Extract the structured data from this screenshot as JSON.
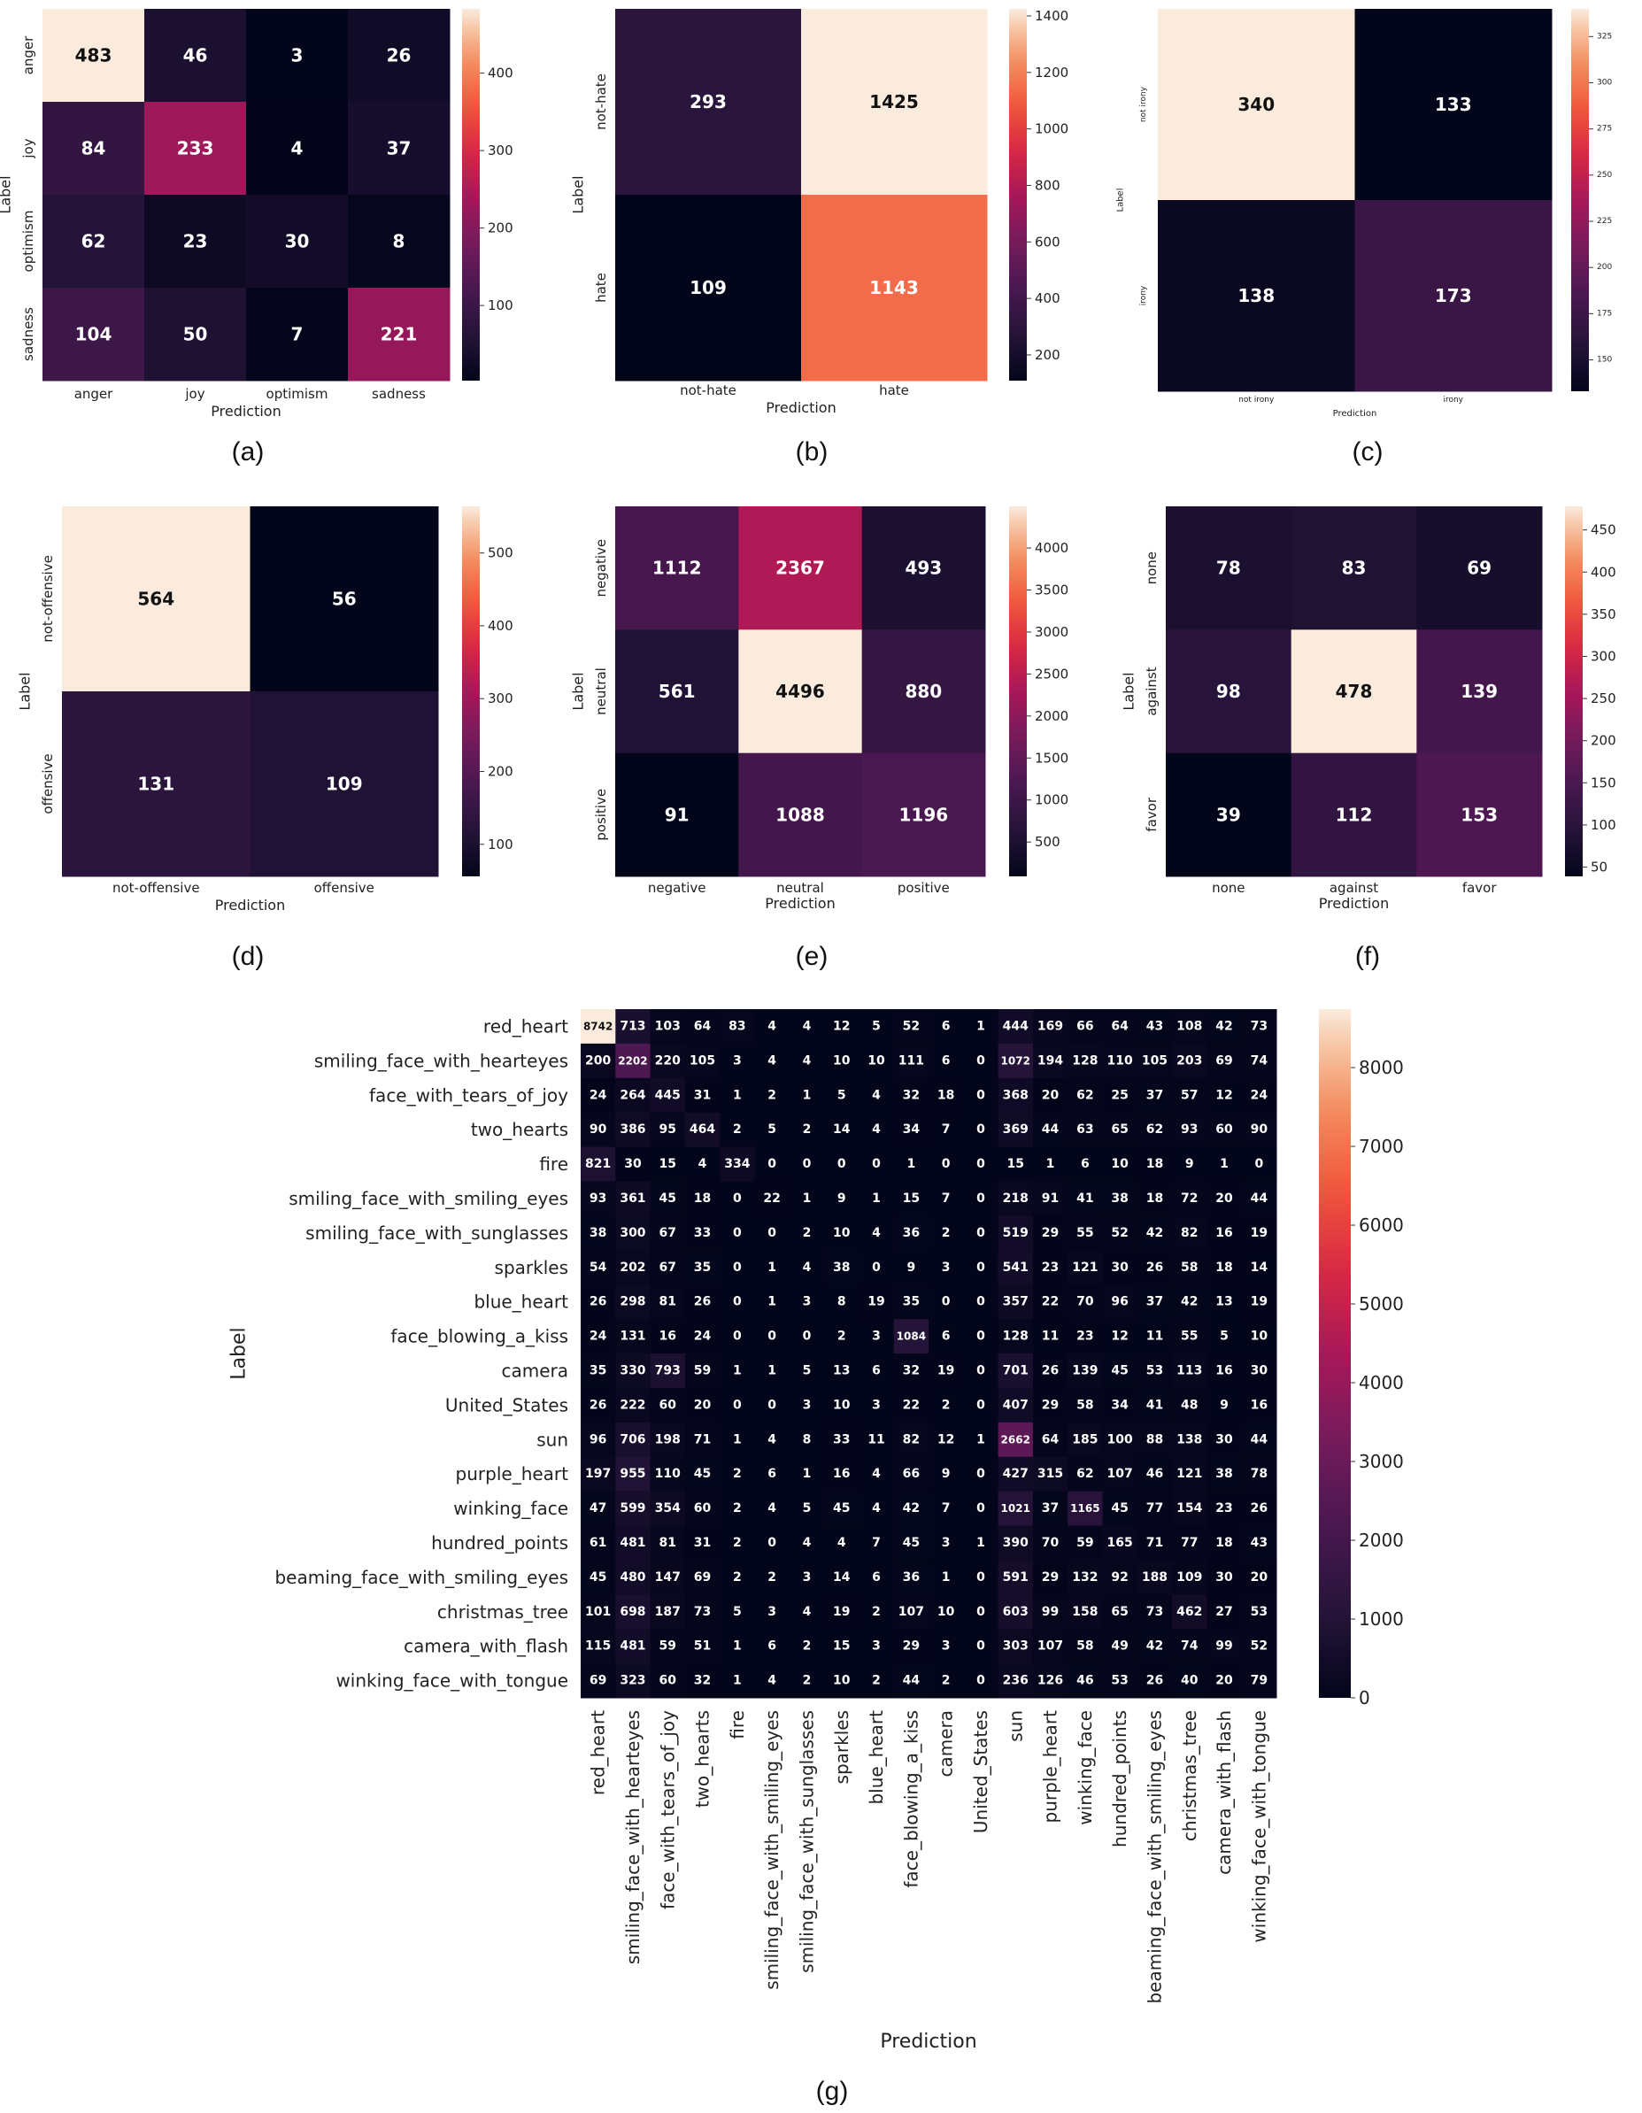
{
  "chart_data": [
    {
      "type": "heatmap",
      "panel": "(a)",
      "xlabel": "Prediction",
      "ylabel": "Label",
      "categories_x": [
        "anger",
        "joy",
        "optimism",
        "sadness"
      ],
      "categories_y": [
        "anger",
        "joy",
        "optimism",
        "sadness"
      ],
      "values": [
        [
          483,
          46,
          3,
          26
        ],
        [
          84,
          233,
          4,
          37
        ],
        [
          62,
          23,
          30,
          8
        ],
        [
          104,
          50,
          7,
          221
        ]
      ],
      "colorbar": {
        "range": [
          3,
          483
        ],
        "ticks": [
          "100",
          "200",
          "300",
          "400"
        ],
        "tick_values": [
          100,
          200,
          300,
          400
        ]
      }
    },
    {
      "type": "heatmap",
      "panel": "(b)",
      "xlabel": "Prediction",
      "ylabel": "Label",
      "categories_x": [
        "not-hate",
        "hate"
      ],
      "categories_y": [
        "not-hate",
        "hate"
      ],
      "values": [
        [
          293,
          1425
        ],
        [
          109,
          1143
        ]
      ],
      "colorbar": {
        "range": [
          109,
          1425
        ],
        "ticks": [
          "200",
          "400",
          "600",
          "800",
          "1000",
          "1200",
          "1400"
        ],
        "tick_values": [
          200,
          400,
          600,
          800,
          1000,
          1200,
          1400
        ]
      }
    },
    {
      "type": "heatmap",
      "panel": "(c)",
      "xlabel": "Prediction",
      "ylabel": "Label",
      "categories_x": [
        "not irony",
        "irony"
      ],
      "categories_y": [
        "not irony",
        "irony"
      ],
      "values": [
        [
          340,
          133
        ],
        [
          138,
          173
        ]
      ],
      "colorbar": {
        "range": [
          133,
          340
        ],
        "ticks": [
          "150",
          "175",
          "200",
          "225",
          "250",
          "275",
          "300",
          "325"
        ],
        "tick_values": [
          150,
          175,
          200,
          225,
          250,
          275,
          300,
          325
        ]
      }
    },
    {
      "type": "heatmap",
      "panel": "(d)",
      "xlabel": "Prediction",
      "ylabel": "Label",
      "categories_x": [
        "not-offensive",
        "offensive"
      ],
      "categories_y": [
        "not-offensive",
        "offensive"
      ],
      "values": [
        [
          564,
          56
        ],
        [
          131,
          109
        ]
      ],
      "colorbar": {
        "range": [
          56,
          564
        ],
        "ticks": [
          "100",
          "200",
          "300",
          "400",
          "500"
        ],
        "tick_values": [
          100,
          200,
          300,
          400,
          500
        ]
      }
    },
    {
      "type": "heatmap",
      "panel": "(e)",
      "xlabel": "Prediction",
      "ylabel": "Label",
      "categories_x": [
        "negative",
        "neutral",
        "positive"
      ],
      "categories_y": [
        "negative",
        "neutral",
        "positive"
      ],
      "values": [
        [
          1112,
          2367,
          493
        ],
        [
          561,
          4496,
          880
        ],
        [
          91,
          1088,
          1196
        ]
      ],
      "colorbar": {
        "range": [
          91,
          4496
        ],
        "ticks": [
          "500",
          "1000",
          "1500",
          "2000",
          "2500",
          "3000",
          "3500",
          "4000"
        ],
        "tick_values": [
          500,
          1000,
          1500,
          2000,
          2500,
          3000,
          3500,
          4000
        ]
      }
    },
    {
      "type": "heatmap",
      "panel": "(f)",
      "xlabel": "Prediction",
      "ylabel": "Label",
      "categories_x": [
        "none",
        "against",
        "favor"
      ],
      "categories_y": [
        "none",
        "against",
        "favor"
      ],
      "values": [
        [
          78,
          83,
          69
        ],
        [
          98,
          478,
          139
        ],
        [
          39,
          112,
          153
        ]
      ],
      "colorbar": {
        "range": [
          39,
          478
        ],
        "ticks": [
          "50",
          "100",
          "150",
          "200",
          "250",
          "300",
          "350",
          "400",
          "450"
        ],
        "tick_values": [
          50,
          100,
          150,
          200,
          250,
          300,
          350,
          400,
          450
        ]
      }
    },
    {
      "type": "heatmap",
      "panel": "(g)",
      "xlabel": "Prediction",
      "ylabel": "Label",
      "categories_x": [
        "red_heart",
        "smiling_face_with_hearteyes",
        "face_with_tears_of_joy",
        "two_hearts",
        "fire",
        "smiling_face_with_smiling_eyes",
        "smiling_face_with_sunglasses",
        "sparkles",
        "blue_heart",
        "face_blowing_a_kiss",
        "camera",
        "United_States",
        "sun",
        "purple_heart",
        "winking_face",
        "hundred_points",
        "beaming_face_with_smiling_eyes",
        "christmas_tree",
        "camera_with_flash",
        "winking_face_with_tongue"
      ],
      "categories_y": [
        "red_heart",
        "smiling_face_with_hearteyes",
        "face_with_tears_of_joy",
        "two_hearts",
        "fire",
        "smiling_face_with_smiling_eyes",
        "smiling_face_with_sunglasses",
        "sparkles",
        "blue_heart",
        "face_blowing_a_kiss",
        "camera",
        "United_States",
        "sun",
        "purple_heart",
        "winking_face",
        "hundred_points",
        "beaming_face_with_smiling_eyes",
        "christmas_tree",
        "camera_with_flash",
        "winking_face_with_tongue"
      ],
      "values": [
        [
          8742,
          713,
          103,
          64,
          83,
          4,
          4,
          12,
          5,
          52,
          6,
          1,
          444,
          169,
          66,
          64,
          43,
          108,
          42,
          73
        ],
        [
          200,
          2202,
          220,
          105,
          3,
          4,
          4,
          10,
          10,
          111,
          6,
          0,
          1072,
          194,
          128,
          110,
          105,
          203,
          69,
          74
        ],
        [
          24,
          264,
          445,
          31,
          1,
          2,
          1,
          5,
          4,
          32,
          18,
          0,
          368,
          20,
          62,
          25,
          37,
          57,
          12,
          24
        ],
        [
          90,
          386,
          95,
          464,
          2,
          5,
          2,
          14,
          4,
          34,
          7,
          0,
          369,
          44,
          63,
          65,
          62,
          93,
          60,
          90
        ],
        [
          821,
          30,
          15,
          4,
          334,
          0,
          0,
          0,
          0,
          1,
          0,
          0,
          15,
          1,
          6,
          10,
          18,
          9,
          1,
          0
        ],
        [
          93,
          361,
          45,
          18,
          0,
          22,
          1,
          9,
          1,
          15,
          7,
          0,
          218,
          91,
          41,
          38,
          18,
          72,
          20,
          44
        ],
        [
          38,
          300,
          67,
          33,
          0,
          0,
          2,
          10,
          4,
          36,
          2,
          0,
          519,
          29,
          55,
          52,
          42,
          82,
          16,
          19
        ],
        [
          54,
          202,
          67,
          35,
          0,
          1,
          4,
          38,
          0,
          9,
          3,
          0,
          541,
          23,
          121,
          30,
          26,
          58,
          18,
          14
        ],
        [
          26,
          298,
          81,
          26,
          0,
          1,
          3,
          8,
          19,
          35,
          0,
          0,
          357,
          22,
          70,
          96,
          37,
          42,
          13,
          19
        ],
        [
          24,
          131,
          16,
          24,
          0,
          0,
          0,
          2,
          3,
          1084,
          6,
          0,
          128,
          11,
          23,
          12,
          11,
          55,
          5,
          10
        ],
        [
          35,
          330,
          793,
          59,
          1,
          1,
          5,
          13,
          6,
          32,
          19,
          0,
          701,
          26,
          139,
          45,
          53,
          113,
          16,
          30
        ],
        [
          26,
          222,
          60,
          20,
          0,
          0,
          3,
          10,
          3,
          22,
          2,
          0,
          407,
          29,
          58,
          34,
          41,
          48,
          9,
          16
        ],
        [
          96,
          706,
          198,
          71,
          1,
          4,
          8,
          33,
          11,
          82,
          12,
          1,
          2662,
          64,
          185,
          100,
          88,
          138,
          30,
          44
        ],
        [
          197,
          955,
          110,
          45,
          2,
          6,
          1,
          16,
          4,
          66,
          9,
          0,
          427,
          315,
          62,
          107,
          46,
          121,
          38,
          78
        ],
        [
          47,
          599,
          354,
          60,
          2,
          4,
          5,
          45,
          4,
          42,
          7,
          0,
          1021,
          37,
          1165,
          45,
          77,
          154,
          23,
          26
        ],
        [
          61,
          481,
          81,
          31,
          2,
          0,
          4,
          4,
          7,
          45,
          3,
          1,
          390,
          70,
          59,
          165,
          71,
          77,
          18,
          43
        ],
        [
          45,
          480,
          147,
          69,
          2,
          2,
          3,
          14,
          6,
          36,
          1,
          0,
          591,
          29,
          132,
          92,
          188,
          109,
          30,
          20
        ],
        [
          101,
          698,
          187,
          73,
          5,
          3,
          4,
          19,
          2,
          107,
          10,
          0,
          603,
          99,
          158,
          65,
          73,
          462,
          27,
          53
        ],
        [
          115,
          481,
          59,
          51,
          1,
          6,
          2,
          15,
          3,
          29,
          3,
          0,
          303,
          107,
          58,
          49,
          42,
          74,
          99,
          52
        ],
        [
          69,
          323,
          60,
          32,
          1,
          4,
          2,
          10,
          2,
          44,
          2,
          0,
          236,
          126,
          46,
          53,
          26,
          40,
          20,
          79
        ]
      ],
      "colorbar": {
        "range": [
          0,
          8742
        ],
        "ticks": [
          "0",
          "1000",
          "2000",
          "3000",
          "4000",
          "5000",
          "6000",
          "7000",
          "8000"
        ],
        "tick_values": [
          0,
          1000,
          2000,
          3000,
          4000,
          5000,
          6000,
          7000,
          8000
        ]
      }
    }
  ]
}
